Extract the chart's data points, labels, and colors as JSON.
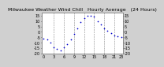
{
  "title": "Milwaukee Weather Wind Chill   Hourly Average   (24 Hours)",
  "title_fontsize": 4.5,
  "bg_color": "#d0d0d0",
  "plot_bg": "#ffffff",
  "grid_color": "#888888",
  "dot_color": "#0000cc",
  "dot_size": 1.5,
  "hours": [
    0,
    1,
    2,
    3,
    4,
    5,
    6,
    7,
    8,
    9,
    10,
    11,
    12,
    13,
    14,
    15,
    16,
    17,
    18,
    19,
    20,
    21,
    22,
    23
  ],
  "wind_chill": [
    -6,
    -7,
    -10,
    -14,
    -16,
    -17,
    -14,
    -11,
    -7,
    -2,
    3,
    9,
    13,
    15,
    15,
    14,
    10,
    7,
    3,
    1,
    -1,
    -3,
    -4,
    -5
  ],
  "ylim": [
    -20,
    18
  ],
  "xlim": [
    -0.5,
    23.5
  ],
  "yticks": [
    -20,
    -15,
    -10,
    -5,
    0,
    5,
    10,
    15
  ],
  "ytick_labels": [
    "-20",
    "-15",
    "-10",
    "-5",
    "0",
    "5",
    "10",
    "15"
  ],
  "xticks": [
    0,
    3,
    6,
    9,
    12,
    15,
    18,
    21,
    23
  ],
  "xtick_labels": [
    "0",
    "3",
    "6",
    "9",
    "12",
    "15",
    "18",
    "21",
    "23"
  ],
  "tick_fontsize": 3.5,
  "vlines": [
    3,
    6,
    9,
    12,
    15,
    18,
    21
  ]
}
